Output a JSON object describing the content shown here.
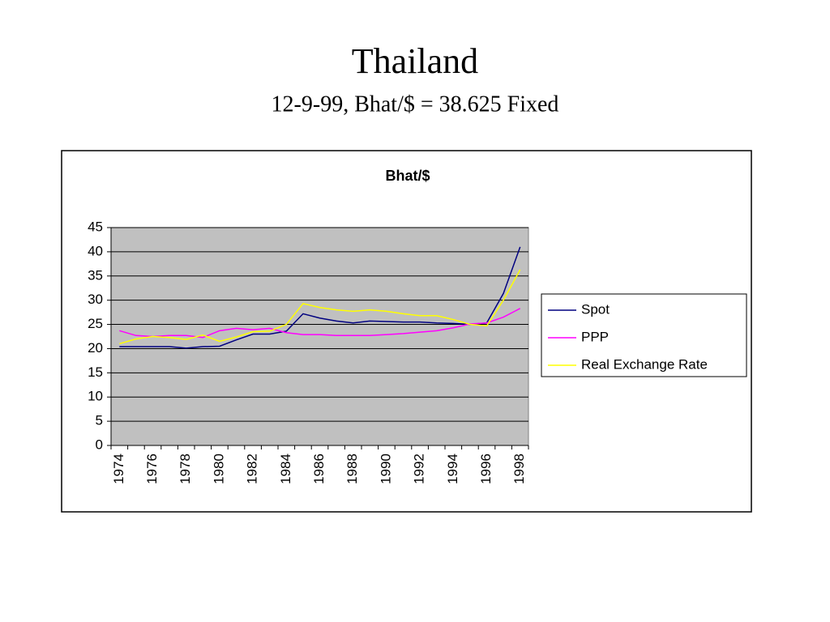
{
  "title": "Thailand",
  "subtitle": "12-9-99, Bhat/$ = 38.625 Fixed",
  "chart_data": {
    "type": "line",
    "title": "Bhat/$",
    "categories": [
      "1974",
      null,
      "1976",
      null,
      "1978",
      null,
      "1980",
      null,
      "1982",
      null,
      "1984",
      null,
      "1986",
      null,
      "1988",
      null,
      "1990",
      null,
      "1992",
      null,
      "1994",
      null,
      "1996",
      null,
      "1998"
    ],
    "series": [
      {
        "name": "Spot",
        "color": "#000080",
        "values": [
          20.4,
          20.4,
          20.4,
          20.4,
          20.1,
          20.4,
          20.5,
          21.8,
          23.0,
          23.0,
          23.6,
          27.2,
          26.3,
          25.7,
          25.3,
          25.7,
          25.6,
          25.5,
          25.5,
          25.3,
          25.2,
          25.0,
          25.3,
          31.4,
          41.0
        ]
      },
      {
        "name": "PPP",
        "color": "#ff00ff",
        "values": [
          23.7,
          22.7,
          22.5,
          22.7,
          22.7,
          22.3,
          23.7,
          24.2,
          23.9,
          24.2,
          23.3,
          22.9,
          22.9,
          22.7,
          22.7,
          22.7,
          22.9,
          23.1,
          23.4,
          23.7,
          24.3,
          25.1,
          25.3,
          26.5,
          28.3
        ]
      },
      {
        "name": "Real Exchange Rate",
        "color": "#ffff00",
        "values": [
          21.0,
          22.0,
          22.5,
          22.3,
          21.9,
          22.8,
          21.5,
          22.4,
          23.5,
          23.6,
          25.0,
          29.3,
          28.5,
          28.0,
          27.7,
          28.0,
          27.7,
          27.2,
          26.8,
          26.8,
          26.0,
          25.0,
          24.7,
          30.0,
          36.3
        ]
      }
    ],
    "ylim": [
      0,
      45
    ],
    "yticks": [
      0,
      5,
      10,
      15,
      20,
      25,
      30,
      35,
      40,
      45
    ],
    "grid": true,
    "legend": "right",
    "plot_background": "#c0c0c0"
  }
}
